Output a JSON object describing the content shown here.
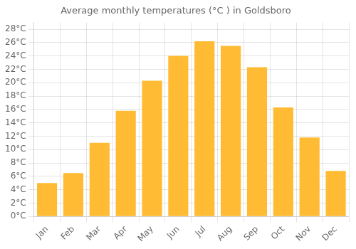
{
  "chart_data": {
    "type": "bar",
    "title": "Average monthly temperatures (°C ) in Goldsboro",
    "categories": [
      "Jan",
      "Feb",
      "Mar",
      "Apr",
      "May",
      "Jun",
      "Jul",
      "Aug",
      "Sep",
      "Oct",
      "Nov",
      "Dec"
    ],
    "values": [
      5,
      6.5,
      11,
      15.8,
      20.3,
      24,
      26.2,
      25.5,
      22.3,
      16.3,
      11.8,
      6.8
    ],
    "color": "#FFBB33",
    "ylim": [
      0,
      29
    ],
    "yticks": [
      {
        "value": 0,
        "label": "0°C"
      },
      {
        "value": 2,
        "label": "2°C"
      },
      {
        "value": 4,
        "label": "4°C"
      },
      {
        "value": 6,
        "label": "6°C"
      },
      {
        "value": 8,
        "label": "8°C"
      },
      {
        "value": 10,
        "label": "10°C"
      },
      {
        "value": 12,
        "label": "12°C"
      },
      {
        "value": 14,
        "label": "14°C"
      },
      {
        "value": 16,
        "label": "16°C"
      },
      {
        "value": 18,
        "label": "18°C"
      },
      {
        "value": 20,
        "label": "20°C"
      },
      {
        "value": 22,
        "label": "22°C"
      },
      {
        "value": 24,
        "label": "24°C"
      },
      {
        "value": 26,
        "label": "26°C"
      },
      {
        "value": 28,
        "label": "28°C"
      }
    ],
    "grid": true
  }
}
